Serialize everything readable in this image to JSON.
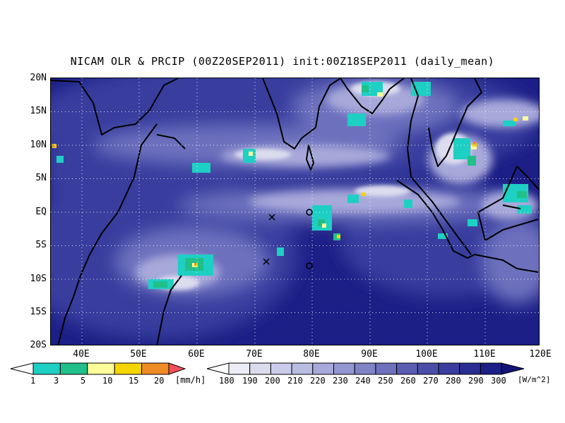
{
  "title": "NICAM OLR & PRCIP (00Z20SEP2011) init:00Z18SEP2011 (daily_mean)",
  "map": {
    "lat_labels": [
      "20N",
      "15N",
      "10N",
      "5N",
      "EQ",
      "5S",
      "10S",
      "15S",
      "20S"
    ],
    "lon_labels": [
      "40E",
      "50E",
      "60E",
      "70E",
      "80E",
      "90E",
      "100E",
      "110E",
      "120E"
    ],
    "extent": {
      "lon": [
        35,
        120
      ],
      "lat": [
        -20,
        20
      ]
    },
    "grid": "dotted",
    "markers": [
      {
        "symbol": "x",
        "lon": 73,
        "lat": -0.7
      },
      {
        "symbol": "x",
        "lon": 72,
        "lat": -7.3
      },
      {
        "symbol": "circle",
        "lon": 80,
        "lat": 0
      },
      {
        "symbol": "circle",
        "lon": 80,
        "lat": -8
      }
    ]
  },
  "precip_colorbar": {
    "labels": [
      "1",
      "3",
      "5",
      "10",
      "15",
      "20"
    ],
    "colors": [
      "#1ecfc3",
      "#21c08a",
      "#fdfd9a",
      "#f5d500",
      "#f08c25",
      "#f2505b"
    ],
    "unit": "[mm/h]"
  },
  "olr_colorbar": {
    "labels": [
      "180",
      "190",
      "200",
      "210",
      "220",
      "230",
      "240",
      "250",
      "260",
      "270",
      "280",
      "290",
      "300"
    ],
    "colors": [
      "#ececf6",
      "#dcdcef",
      "#ccccea",
      "#babde2",
      "#a7a9da",
      "#9396d1",
      "#8083c6",
      "#6d71bd",
      "#5a5eb3",
      "#4a4ea8",
      "#393d9e",
      "#2a2d93",
      "#1c1f86",
      "#121477"
    ],
    "unit": "[W/m^2]"
  }
}
